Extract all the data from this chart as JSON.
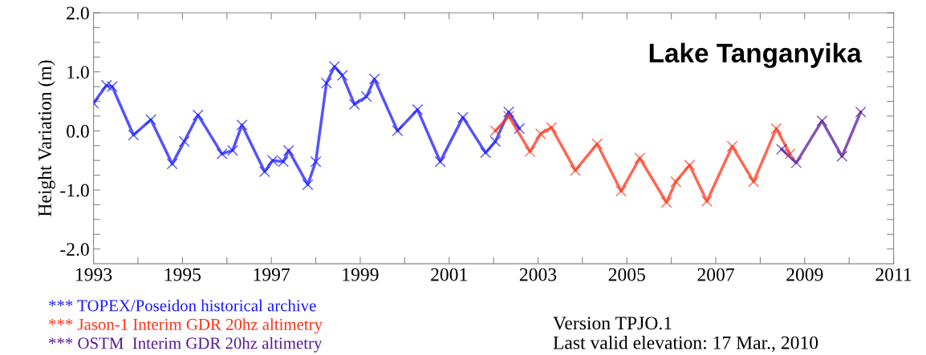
{
  "chart_data": {
    "type": "line",
    "ylabel": "Height Variation (m)",
    "xlim": [
      1993,
      2011
    ],
    "xticks": [
      1993,
      {
        "value": 1994,
        "label": null
      },
      1995,
      {
        "value": 1996,
        "label": null
      },
      1997,
      {
        "value": 1998,
        "label": null
      },
      1999,
      {
        "value": 2000,
        "label": null
      },
      2001,
      {
        "value": 2002,
        "label": null
      },
      2003,
      {
        "value": 2004,
        "label": null
      },
      2005,
      {
        "value": 2006,
        "label": null
      },
      2007,
      {
        "value": 2008,
        "label": null
      },
      2009,
      {
        "value": 2010,
        "label": null
      },
      2011
    ],
    "ylim": [
      -2.25,
      2.0
    ],
    "yticks": [
      {
        "value": 2.0,
        "label": "2.0"
      },
      {
        "value": 1.75,
        "label": null
      },
      {
        "value": 1.5,
        "label": null
      },
      {
        "value": 1.25,
        "label": null
      },
      {
        "value": 1.0,
        "label": "1.0"
      },
      {
        "value": 0.75,
        "label": null
      },
      {
        "value": 0.5,
        "label": null
      },
      {
        "value": 0.25,
        "label": null
      },
      {
        "value": 0.0,
        "label": "0.0"
      },
      {
        "value": -0.25,
        "label": null
      },
      {
        "value": -0.5,
        "label": null
      },
      {
        "value": -0.75,
        "label": null
      },
      {
        "value": -1.0,
        "label": "-1.0"
      },
      {
        "value": -1.25,
        "label": null
      },
      {
        "value": -1.5,
        "label": null
      },
      {
        "value": -1.75,
        "label": null
      },
      {
        "value": -2.0,
        "label": "-2.0"
      }
    ],
    "marker": "cross",
    "line_style": "solid",
    "grid": false,
    "legend": "bottom left",
    "annotations": [
      "Lake Tanganyika",
      "Version TPJO.1",
      "Last valid elevation: 17 Mar., 2010"
    ],
    "series": [
      {
        "name": "*** TOPEX/Poseidon historical archive",
        "color": "#1a1aff",
        "x": [
          1993.0,
          1993.29,
          1993.42,
          1993.9,
          1994.29,
          1994.77,
          1995.04,
          1995.35,
          1995.89,
          1996.13,
          1996.34,
          1996.85,
          1997.03,
          1997.27,
          1997.39,
          1997.82,
          1998.0,
          1998.24,
          1998.42,
          1998.6,
          1998.87,
          1999.14,
          1999.32,
          1999.84,
          2000.29,
          2000.8,
          2001.31,
          2001.82,
          2002.04,
          2002.34,
          2002.58
        ],
        "values": [
          0.47,
          0.77,
          0.75,
          -0.07,
          0.19,
          -0.56,
          -0.18,
          0.27,
          -0.39,
          -0.33,
          0.1,
          -0.69,
          -0.5,
          -0.52,
          -0.33,
          -0.91,
          -0.52,
          0.81,
          1.09,
          0.94,
          0.45,
          0.58,
          0.88,
          0.0,
          0.36,
          -0.52,
          0.23,
          -0.37,
          -0.18,
          0.32,
          0.04
        ]
      },
      {
        "name": "*** Jason-1 Interim GDR 20hz altimetry",
        "color": "#ff3319",
        "x": [
          2002.04,
          2002.34,
          2002.82,
          2003.06,
          2003.3,
          2003.84,
          2004.33,
          2004.87,
          2005.29,
          2005.89,
          2006.1,
          2006.41,
          2006.8,
          2007.37,
          2007.85,
          2008.36,
          2008.67
        ],
        "values": [
          0.0,
          0.25,
          -0.35,
          -0.05,
          0.06,
          -0.67,
          -0.22,
          -1.02,
          -0.46,
          -1.21,
          -0.86,
          -0.58,
          -1.19,
          -0.26,
          -0.86,
          0.04,
          -0.39
        ]
      },
      {
        "name": "*** OSTM  Interim GDR 20hz altimetry",
        "color": "#5a1a9a",
        "x": [
          2008.48,
          2008.81,
          2009.39,
          2009.84,
          2010.26
        ],
        "values": [
          -0.31,
          -0.54,
          0.17,
          -0.43,
          0.32
        ]
      }
    ]
  }
}
